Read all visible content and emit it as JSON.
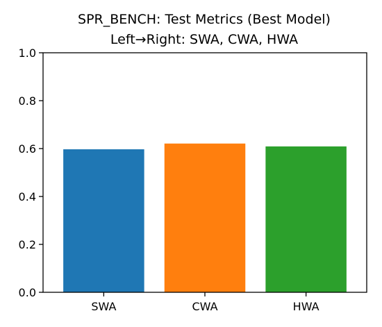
{
  "chart_data": {
    "type": "bar",
    "title": "SPR_BENCH: Test Metrics (Best Model)",
    "subtitle": "Left→Right: SWA, CWA, HWA",
    "xlabel": "",
    "ylabel": "",
    "categories": [
      "SWA",
      "CWA",
      "HWA"
    ],
    "values": [
      0.597,
      0.621,
      0.609
    ],
    "colors": [
      "#1f77b4",
      "#ff7f0e",
      "#2ca02c"
    ],
    "ylim": [
      0,
      1.0
    ],
    "yticks": [
      0.0,
      0.2,
      0.4,
      0.6,
      0.8,
      1.0
    ],
    "ytick_labels": [
      "0.0",
      "0.2",
      "0.4",
      "0.6",
      "0.8",
      "1.0"
    ],
    "grid": false,
    "legend": "none"
  }
}
